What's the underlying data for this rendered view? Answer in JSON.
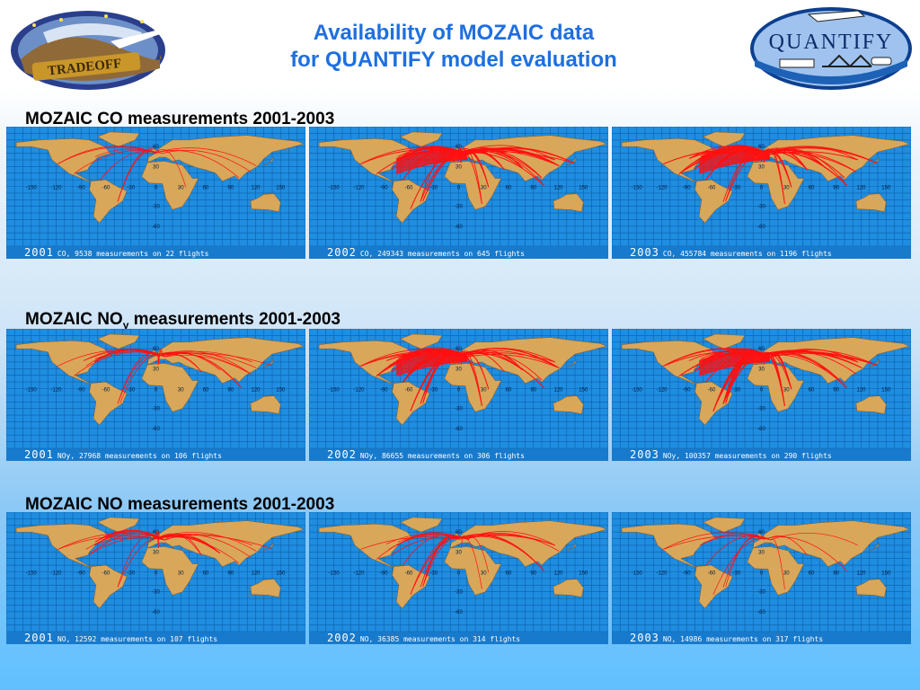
{
  "title": {
    "line1": "Availability of MOZAIC data",
    "line2": "for QUANTIFY model evaluation"
  },
  "logos": {
    "left": {
      "text": "TRADEOFF",
      "icon": "tradeoff-logo"
    },
    "right": {
      "text": "QUANTIFY",
      "icon": "quantify-logo"
    }
  },
  "sections": [
    {
      "title": "MOZAIC CO measurements 2001-2003",
      "maps": [
        {
          "year": "2001",
          "caption": "CO, 9538 measurements on 22 flights",
          "density": "low"
        },
        {
          "year": "2002",
          "caption": "CO, 249343 measurements on 645  flights",
          "density": "high"
        },
        {
          "year": "2003",
          "caption": "CO, 455784 measurements on 1196 flights",
          "density": "high"
        }
      ]
    },
    {
      "title_main": "MOZAIC NO",
      "title_sub": "y",
      "title_rest": " measurements 2001-2003",
      "maps": [
        {
          "year": "2001",
          "caption": "NOy, 27968 measurements on 106 flights",
          "density": "medium"
        },
        {
          "year": "2002",
          "caption": "NOy, 86655 measurements on 306 flights",
          "density": "high"
        },
        {
          "year": "2003",
          "caption": "NOy, 100357 measurements on 290 flights",
          "density": "high"
        }
      ]
    },
    {
      "title": "MOZAIC NO measurements 2001-2003",
      "maps": [
        {
          "year": "2001",
          "caption": "NO, 12592 measurements on 107 flights",
          "density": "medium"
        },
        {
          "year": "2002",
          "caption": "NO, 36385 measurements on 314 flights",
          "density": "medium"
        },
        {
          "year": "2003",
          "caption": "NO, 14986 measurements on 317 flights",
          "density": "low"
        }
      ]
    }
  ],
  "map_labels": {
    "lon": [
      "-150",
      "-120",
      "-90",
      "-60",
      "-30",
      "0",
      "30",
      "60",
      "90",
      "120",
      "150"
    ],
    "lat": [
      "60",
      "30",
      "-30",
      "-60"
    ]
  },
  "colors": {
    "title": "#1e6fe0",
    "ocean": "#0c63ad",
    "land": "#d9a75a",
    "flight": "#ff1010"
  }
}
